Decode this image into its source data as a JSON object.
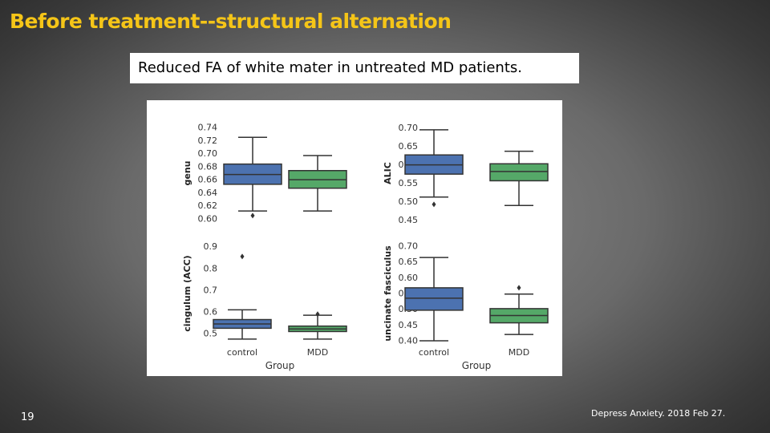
{
  "slide": {
    "title": "Before treatment--structural alternation",
    "subtitle": "Reduced FA of  white mater in  untreated MD patients.",
    "page_number": "19",
    "citation": "Depress Anxiety. 2018 Feb 27."
  },
  "colors": {
    "title": "#f5c518",
    "control": "#4c72b0",
    "mdd": "#55a868",
    "line": "#333333"
  },
  "chart_data": [
    {
      "type": "box",
      "ylabel": "genu",
      "xlabel": "",
      "categories": [
        "control",
        "MDD"
      ],
      "show_x_ticklabels": false,
      "ylim": [
        0.595,
        0.745
      ],
      "yticks": [
        "0.60",
        "0.62",
        "0.64",
        "0.66",
        "0.68",
        "0.70",
        "0.72",
        "0.74"
      ],
      "boxes": [
        {
          "name": "control",
          "whislo": 0.612,
          "q1": 0.653,
          "med": 0.668,
          "q3": 0.684,
          "whishi": 0.725,
          "fliers": [
            0.605
          ]
        },
        {
          "name": "MDD",
          "whislo": 0.612,
          "q1": 0.647,
          "med": 0.66,
          "q3": 0.674,
          "whishi": 0.697,
          "fliers": []
        }
      ]
    },
    {
      "type": "box",
      "ylabel": "ALIC",
      "xlabel": "",
      "categories": [
        "control",
        "MDD"
      ],
      "show_x_ticklabels": false,
      "ylim": [
        0.445,
        0.71
      ],
      "yticks": [
        "0.45",
        "0.50",
        "0.55",
        "0.60",
        "0.65",
        "0.70"
      ],
      "boxes": [
        {
          "name": "control",
          "whislo": 0.513,
          "q1": 0.575,
          "med": 0.6,
          "q3": 0.627,
          "whishi": 0.695,
          "fliers": [
            0.493
          ]
        },
        {
          "name": "MDD",
          "whislo": 0.49,
          "q1": 0.557,
          "med": 0.582,
          "q3": 0.603,
          "whishi": 0.637,
          "fliers": []
        }
      ]
    },
    {
      "type": "box",
      "ylabel": "cingulum (ACC)",
      "xlabel": "Group",
      "categories": [
        "control",
        "MDD"
      ],
      "show_x_ticklabels": true,
      "ylim": [
        0.46,
        0.91
      ],
      "yticks": [
        "0.5",
        "0.6",
        "0.7",
        "0.8",
        "0.9"
      ],
      "boxes": [
        {
          "name": "control",
          "whislo": 0.475,
          "q1": 0.525,
          "med": 0.545,
          "q3": 0.565,
          "whishi": 0.61,
          "fliers": [
            0.855
          ]
        },
        {
          "name": "MDD",
          "whislo": 0.475,
          "q1": 0.51,
          "med": 0.522,
          "q3": 0.535,
          "whishi": 0.585,
          "fliers": [
            0.59
          ]
        }
      ]
    },
    {
      "type": "box",
      "ylabel": "uncinate fasciculus",
      "xlabel": "Group",
      "categories": [
        "control",
        "MDD"
      ],
      "show_x_ticklabels": true,
      "ylim": [
        0.395,
        0.705
      ],
      "yticks": [
        "0.40",
        "0.45",
        "0.50",
        "0.55",
        "0.60",
        "0.65",
        "0.70"
      ],
      "boxes": [
        {
          "name": "control",
          "whislo": 0.4,
          "q1": 0.497,
          "med": 0.535,
          "q3": 0.568,
          "whishi": 0.664,
          "fliers": []
        },
        {
          "name": "MDD",
          "whislo": 0.42,
          "q1": 0.457,
          "med": 0.48,
          "q3": 0.502,
          "whishi": 0.548,
          "fliers": [
            0.568
          ]
        }
      ]
    }
  ]
}
